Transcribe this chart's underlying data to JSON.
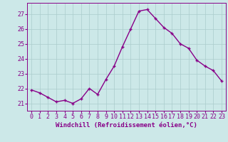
{
  "x": [
    0,
    1,
    2,
    3,
    4,
    5,
    6,
    7,
    8,
    9,
    10,
    11,
    12,
    13,
    14,
    15,
    16,
    17,
    18,
    19,
    20,
    21,
    22,
    23
  ],
  "y": [
    21.9,
    21.7,
    21.4,
    21.1,
    21.2,
    21.0,
    21.3,
    22.0,
    21.6,
    22.6,
    23.5,
    24.8,
    26.0,
    27.2,
    27.3,
    26.7,
    26.1,
    25.7,
    25.0,
    24.7,
    23.9,
    23.5,
    23.2,
    22.5
  ],
  "line_color": "#880088",
  "marker": "+",
  "marker_size": 3.5,
  "bg_color": "#cce8e8",
  "grid_color": "#aacccc",
  "xlabel": "Windchill (Refroidissement éolien,°C)",
  "ylim": [
    20.5,
    27.75
  ],
  "yticks": [
    21,
    22,
    23,
    24,
    25,
    26,
    27
  ],
  "xticks": [
    0,
    1,
    2,
    3,
    4,
    5,
    6,
    7,
    8,
    9,
    10,
    11,
    12,
    13,
    14,
    15,
    16,
    17,
    18,
    19,
    20,
    21,
    22,
    23
  ],
  "xlabel_fontsize": 6.5,
  "tick_fontsize": 6.0,
  "line_width": 1.0
}
